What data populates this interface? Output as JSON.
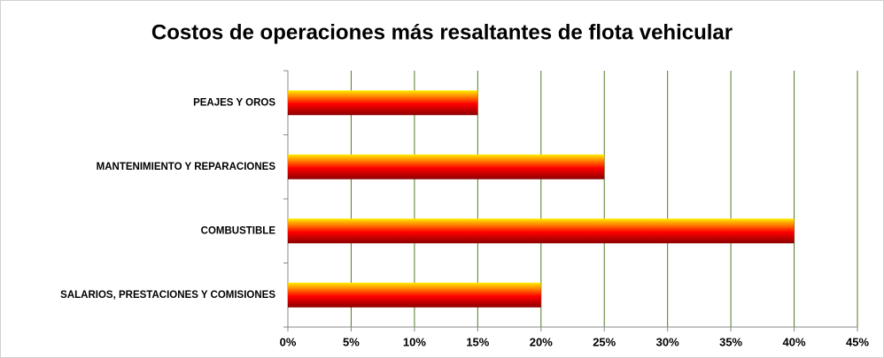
{
  "chart_data": {
    "type": "bar",
    "orientation": "horizontal",
    "title": "Costos de operaciones más resaltantes de flota vehicular",
    "categories": [
      "PEAJES Y OROS",
      "MANTENIMIENTO Y REPARACIONES",
      "COMBUSTIBLE",
      "SALARIOS, PRESTACIONES Y COMISIONES"
    ],
    "values": [
      15,
      25,
      40,
      20
    ],
    "colors": [
      "#ffee00",
      "#ff0000",
      "#8b0000"
    ],
    "xlim": [
      0,
      45
    ],
    "xticks": [
      {
        "value": 0,
        "label": "0%"
      },
      {
        "value": 5,
        "label": "5%"
      },
      {
        "value": 10,
        "label": "10%"
      },
      {
        "value": 15,
        "label": "15%"
      },
      {
        "value": 20,
        "label": "20%"
      },
      {
        "value": 25,
        "label": "25%"
      },
      {
        "value": 30,
        "label": "30%"
      },
      {
        "value": 35,
        "label": "35%"
      },
      {
        "value": 40,
        "label": "40%"
      },
      {
        "value": 45,
        "label": "45%"
      }
    ],
    "grid": true,
    "grid_color": "#4f7a28"
  }
}
